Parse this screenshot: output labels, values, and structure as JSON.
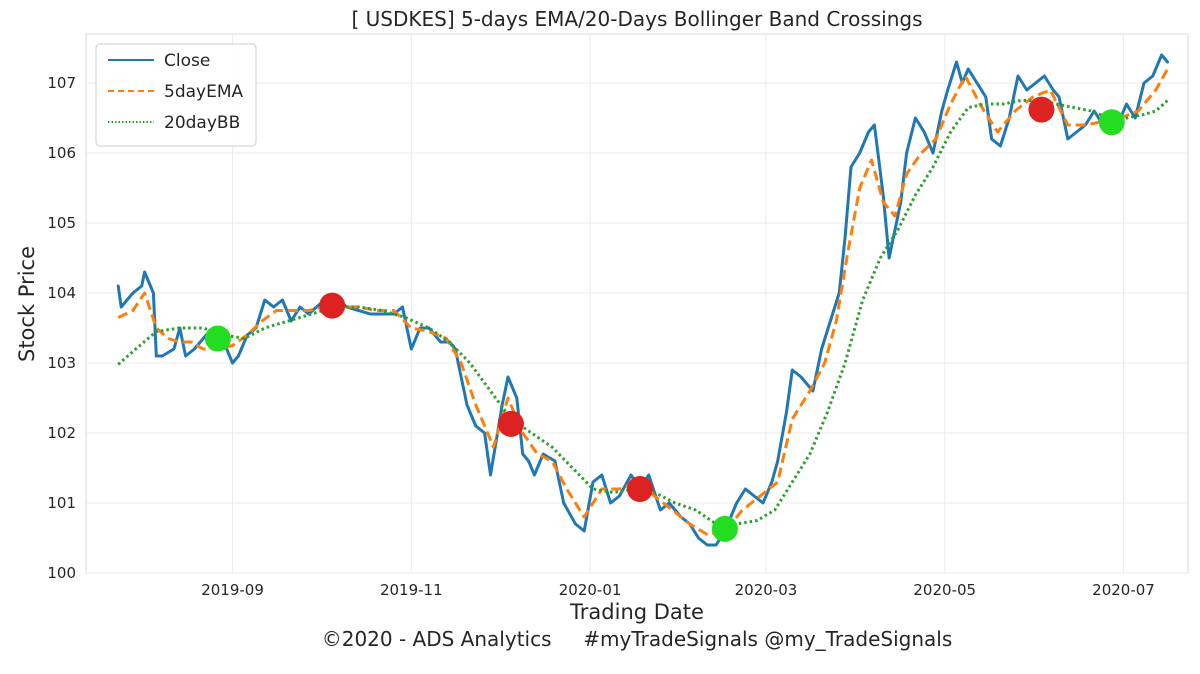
{
  "chart_data": {
    "type": "line",
    "title": "[ USDKES] 5-days EMA/20-Days Bollinger Band Crossings",
    "xlabel": "Trading Date",
    "ylabel": "Stock Price",
    "footer": "©2020 - ADS Analytics     #myTradeSignals @my_TradeSignals",
    "x_range": [
      "2019-07-13",
      "2020-07-23"
    ],
    "ylim": [
      100,
      107.7
    ],
    "x_ticks": [
      "2019-09",
      "2019-11",
      "2020-01",
      "2020-03",
      "2020-05",
      "2020-07"
    ],
    "y_ticks": [
      "100",
      "101",
      "102",
      "103",
      "104",
      "105",
      "106",
      "107"
    ],
    "grid": true,
    "legend_position": "top-left",
    "series": [
      {
        "name": "Close",
        "color": "#1f77b4",
        "style": "solid",
        "points": [
          [
            "2019-07-24",
            104.1
          ],
          [
            "2019-07-25",
            103.8
          ],
          [
            "2019-07-29",
            104.0
          ],
          [
            "2019-08-01",
            104.1
          ],
          [
            "2019-08-02",
            104.3
          ],
          [
            "2019-08-05",
            104.0
          ],
          [
            "2019-08-06",
            103.1
          ],
          [
            "2019-08-08",
            103.1
          ],
          [
            "2019-08-12",
            103.2
          ],
          [
            "2019-08-14",
            103.5
          ],
          [
            "2019-08-16",
            103.1
          ],
          [
            "2019-08-19",
            103.2
          ],
          [
            "2019-08-21",
            103.3
          ],
          [
            "2019-08-23",
            103.4
          ],
          [
            "2019-08-27",
            103.2
          ],
          [
            "2019-08-29",
            103.3
          ],
          [
            "2019-09-01",
            103.0
          ],
          [
            "2019-09-03",
            103.1
          ],
          [
            "2019-09-06",
            103.4
          ],
          [
            "2019-09-09",
            103.5
          ],
          [
            "2019-09-12",
            103.9
          ],
          [
            "2019-09-15",
            103.8
          ],
          [
            "2019-09-18",
            103.9
          ],
          [
            "2019-09-21",
            103.6
          ],
          [
            "2019-09-24",
            103.8
          ],
          [
            "2019-09-27",
            103.7
          ],
          [
            "2019-10-01",
            103.85
          ],
          [
            "2019-10-04",
            103.75
          ],
          [
            "2019-10-07",
            103.9
          ],
          [
            "2019-10-10",
            103.8
          ],
          [
            "2019-10-14",
            103.75
          ],
          [
            "2019-10-18",
            103.7
          ],
          [
            "2019-10-22",
            103.7
          ],
          [
            "2019-10-26",
            103.7
          ],
          [
            "2019-10-29",
            103.8
          ],
          [
            "2019-11-01",
            103.2
          ],
          [
            "2019-11-04",
            103.5
          ],
          [
            "2019-11-07",
            103.5
          ],
          [
            "2019-11-11",
            103.3
          ],
          [
            "2019-11-14",
            103.3
          ],
          [
            "2019-11-16",
            103.2
          ],
          [
            "2019-11-20",
            102.4
          ],
          [
            "2019-11-23",
            102.1
          ],
          [
            "2019-11-26",
            102.0
          ],
          [
            "2019-11-28",
            101.4
          ],
          [
            "2019-12-02",
            102.4
          ],
          [
            "2019-12-04",
            102.8
          ],
          [
            "2019-12-07",
            102.5
          ],
          [
            "2019-12-09",
            101.7
          ],
          [
            "2019-12-11",
            101.6
          ],
          [
            "2019-12-13",
            101.4
          ],
          [
            "2019-12-16",
            101.7
          ],
          [
            "2019-12-20",
            101.6
          ],
          [
            "2019-12-23",
            101.0
          ],
          [
            "2019-12-27",
            100.7
          ],
          [
            "2019-12-30",
            100.6
          ],
          [
            "2020-01-02",
            101.3
          ],
          [
            "2020-01-05",
            101.4
          ],
          [
            "2020-01-08",
            101.0
          ],
          [
            "2020-01-11",
            101.1
          ],
          [
            "2020-01-15",
            101.4
          ],
          [
            "2020-01-18",
            101.2
          ],
          [
            "2020-01-21",
            101.4
          ],
          [
            "2020-01-25",
            100.9
          ],
          [
            "2020-01-28",
            101.0
          ],
          [
            "2020-02-01",
            100.8
          ],
          [
            "2020-02-04",
            100.7
          ],
          [
            "2020-02-07",
            100.5
          ],
          [
            "2020-02-10",
            100.4
          ],
          [
            "2020-02-13",
            100.4
          ],
          [
            "2020-02-16",
            100.6
          ],
          [
            "2020-02-20",
            101.0
          ],
          [
            "2020-02-23",
            101.2
          ],
          [
            "2020-02-26",
            101.1
          ],
          [
            "2020-02-29",
            101.0
          ],
          [
            "2020-03-03",
            101.3
          ],
          [
            "2020-03-05",
            101.6
          ],
          [
            "2020-03-08",
            102.3
          ],
          [
            "2020-03-10",
            102.9
          ],
          [
            "2020-03-13",
            102.8
          ],
          [
            "2020-03-17",
            102.6
          ],
          [
            "2020-03-20",
            103.2
          ],
          [
            "2020-03-23",
            103.6
          ],
          [
            "2020-03-26",
            104.0
          ],
          [
            "2020-03-28",
            104.8
          ],
          [
            "2020-03-30",
            105.8
          ],
          [
            "2020-04-02",
            106.0
          ],
          [
            "2020-04-05",
            106.3
          ],
          [
            "2020-04-07",
            106.4
          ],
          [
            "2020-04-10",
            105.4
          ],
          [
            "2020-04-12",
            104.5
          ],
          [
            "2020-04-16",
            105.3
          ],
          [
            "2020-04-18",
            106.0
          ],
          [
            "2020-04-21",
            106.5
          ],
          [
            "2020-04-24",
            106.3
          ],
          [
            "2020-04-27",
            106.0
          ],
          [
            "2020-04-30",
            106.6
          ],
          [
            "2020-05-02",
            106.9
          ],
          [
            "2020-05-05",
            107.3
          ],
          [
            "2020-05-07",
            107.0
          ],
          [
            "2020-05-09",
            107.2
          ],
          [
            "2020-05-12",
            107.0
          ],
          [
            "2020-05-15",
            106.8
          ],
          [
            "2020-05-17",
            106.2
          ],
          [
            "2020-05-20",
            106.1
          ],
          [
            "2020-05-23",
            106.5
          ],
          [
            "2020-05-26",
            107.1
          ],
          [
            "2020-05-29",
            106.9
          ],
          [
            "2020-06-01",
            107.0
          ],
          [
            "2020-06-04",
            107.1
          ],
          [
            "2020-06-07",
            106.9
          ],
          [
            "2020-06-09",
            106.8
          ],
          [
            "2020-06-12",
            106.2
          ],
          [
            "2020-06-15",
            106.3
          ],
          [
            "2020-06-18",
            106.4
          ],
          [
            "2020-06-21",
            106.6
          ],
          [
            "2020-06-24",
            106.4
          ],
          [
            "2020-06-27",
            106.5
          ],
          [
            "2020-06-30",
            106.5
          ],
          [
            "2020-07-02",
            106.7
          ],
          [
            "2020-07-05",
            106.5
          ],
          [
            "2020-07-08",
            107.0
          ],
          [
            "2020-07-11",
            107.1
          ],
          [
            "2020-07-14",
            107.4
          ],
          [
            "2020-07-16",
            107.3
          ]
        ]
      },
      {
        "name": "5dayEMA",
        "color": "#ff7f0e",
        "style": "dashed",
        "points": [
          [
            "2019-07-24",
            103.65
          ],
          [
            "2019-07-29",
            103.75
          ],
          [
            "2019-08-02",
            104.0
          ],
          [
            "2019-08-06",
            103.5
          ],
          [
            "2019-08-10",
            103.35
          ],
          [
            "2019-08-14",
            103.3
          ],
          [
            "2019-08-18",
            103.3
          ],
          [
            "2019-08-22",
            103.2
          ],
          [
            "2019-08-27",
            103.2
          ],
          [
            "2019-09-01",
            103.25
          ],
          [
            "2019-09-06",
            103.4
          ],
          [
            "2019-09-11",
            103.6
          ],
          [
            "2019-09-16",
            103.75
          ],
          [
            "2019-09-22",
            103.75
          ],
          [
            "2019-09-27",
            103.75
          ],
          [
            "2019-10-02",
            103.8
          ],
          [
            "2019-10-08",
            103.8
          ],
          [
            "2019-10-14",
            103.8
          ],
          [
            "2019-10-20",
            103.75
          ],
          [
            "2019-10-26",
            103.75
          ],
          [
            "2019-11-01",
            103.5
          ],
          [
            "2019-11-07",
            103.45
          ],
          [
            "2019-11-13",
            103.35
          ],
          [
            "2019-11-18",
            103.0
          ],
          [
            "2019-11-23",
            102.4
          ],
          [
            "2019-11-29",
            101.8
          ],
          [
            "2019-12-04",
            102.5
          ],
          [
            "2019-12-09",
            102.0
          ],
          [
            "2019-12-14",
            101.7
          ],
          [
            "2019-12-19",
            101.6
          ],
          [
            "2019-12-24",
            101.2
          ],
          [
            "2019-12-30",
            100.8
          ],
          [
            "2020-01-05",
            101.2
          ],
          [
            "2020-01-11",
            101.2
          ],
          [
            "2020-01-17",
            101.3
          ],
          [
            "2020-01-23",
            101.1
          ],
          [
            "2020-01-29",
            100.9
          ],
          [
            "2020-02-04",
            100.7
          ],
          [
            "2020-02-10",
            100.55
          ],
          [
            "2020-02-16",
            100.6
          ],
          [
            "2020-02-22",
            100.9
          ],
          [
            "2020-02-28",
            101.1
          ],
          [
            "2020-03-05",
            101.3
          ],
          [
            "2020-03-10",
            102.2
          ],
          [
            "2020-03-16",
            102.6
          ],
          [
            "2020-03-21",
            103.0
          ],
          [
            "2020-03-25",
            103.6
          ],
          [
            "2020-03-29",
            104.6
          ],
          [
            "2020-04-02",
            105.5
          ],
          [
            "2020-04-06",
            105.9
          ],
          [
            "2020-04-10",
            105.3
          ],
          [
            "2020-04-14",
            105.1
          ],
          [
            "2020-04-18",
            105.7
          ],
          [
            "2020-04-23",
            106.0
          ],
          [
            "2020-04-28",
            106.2
          ],
          [
            "2020-05-03",
            106.7
          ],
          [
            "2020-05-08",
            107.1
          ],
          [
            "2020-05-13",
            106.7
          ],
          [
            "2020-05-19",
            106.3
          ],
          [
            "2020-05-25",
            106.6
          ],
          [
            "2020-05-31",
            106.8
          ],
          [
            "2020-06-06",
            106.9
          ],
          [
            "2020-06-12",
            106.4
          ],
          [
            "2020-06-18",
            106.4
          ],
          [
            "2020-06-24",
            106.45
          ],
          [
            "2020-06-30",
            106.5
          ],
          [
            "2020-07-06",
            106.6
          ],
          [
            "2020-07-12",
            106.9
          ],
          [
            "2020-07-16",
            107.2
          ]
        ]
      },
      {
        "name": "20dayBB",
        "color": "#2ca02c",
        "style": "dotted",
        "points": [
          [
            "2019-07-24",
            102.98
          ],
          [
            "2019-07-30",
            103.2
          ],
          [
            "2019-08-06",
            103.45
          ],
          [
            "2019-08-14",
            103.5
          ],
          [
            "2019-08-22",
            103.5
          ],
          [
            "2019-08-29",
            103.4
          ],
          [
            "2019-09-05",
            103.35
          ],
          [
            "2019-09-12",
            103.5
          ],
          [
            "2019-09-20",
            103.6
          ],
          [
            "2019-09-28",
            103.7
          ],
          [
            "2019-10-06",
            103.8
          ],
          [
            "2019-10-14",
            103.8
          ],
          [
            "2019-10-22",
            103.75
          ],
          [
            "2019-10-30",
            103.65
          ],
          [
            "2019-11-07",
            103.5
          ],
          [
            "2019-11-14",
            103.3
          ],
          [
            "2019-11-21",
            103.0
          ],
          [
            "2019-11-28",
            102.6
          ],
          [
            "2019-12-05",
            102.2
          ],
          [
            "2019-12-12",
            102.0
          ],
          [
            "2019-12-19",
            101.8
          ],
          [
            "2019-12-26",
            101.5
          ],
          [
            "2020-01-02",
            101.2
          ],
          [
            "2020-01-09",
            101.15
          ],
          [
            "2020-01-16",
            101.2
          ],
          [
            "2020-01-23",
            101.15
          ],
          [
            "2020-01-30",
            101.0
          ],
          [
            "2020-02-06",
            100.9
          ],
          [
            "2020-02-13",
            100.7
          ],
          [
            "2020-02-20",
            100.7
          ],
          [
            "2020-02-27",
            100.75
          ],
          [
            "2020-03-04",
            100.9
          ],
          [
            "2020-03-10",
            101.3
          ],
          [
            "2020-03-16",
            101.7
          ],
          [
            "2020-03-22",
            102.3
          ],
          [
            "2020-03-28",
            103.0
          ],
          [
            "2020-04-03",
            103.9
          ],
          [
            "2020-04-09",
            104.5
          ],
          [
            "2020-04-15",
            104.9
          ],
          [
            "2020-04-21",
            105.4
          ],
          [
            "2020-04-27",
            105.8
          ],
          [
            "2020-05-03",
            106.3
          ],
          [
            "2020-05-09",
            106.65
          ],
          [
            "2020-05-15",
            106.7
          ],
          [
            "2020-05-21",
            106.7
          ],
          [
            "2020-05-27",
            106.75
          ],
          [
            "2020-06-02",
            106.75
          ],
          [
            "2020-06-08",
            106.7
          ],
          [
            "2020-06-14",
            106.65
          ],
          [
            "2020-06-20",
            106.6
          ],
          [
            "2020-06-26",
            106.5
          ],
          [
            "2020-07-02",
            106.5
          ],
          [
            "2020-07-08",
            106.55
          ],
          [
            "2020-07-12",
            106.6
          ],
          [
            "2020-07-16",
            106.75
          ]
        ]
      }
    ],
    "markers": [
      {
        "date": "2019-08-27",
        "value": 103.35,
        "color": "#22dd22"
      },
      {
        "date": "2019-10-05",
        "value": 103.82,
        "color": "#dd2222"
      },
      {
        "date": "2019-12-05",
        "value": 102.13,
        "color": "#dd2222"
      },
      {
        "date": "2020-01-18",
        "value": 101.2,
        "color": "#dd2222"
      },
      {
        "date": "2020-02-16",
        "value": 100.63,
        "color": "#22dd22"
      },
      {
        "date": "2020-06-03",
        "value": 106.62,
        "color": "#dd2222"
      },
      {
        "date": "2020-06-27",
        "value": 106.44,
        "color": "#22dd22"
      }
    ]
  }
}
